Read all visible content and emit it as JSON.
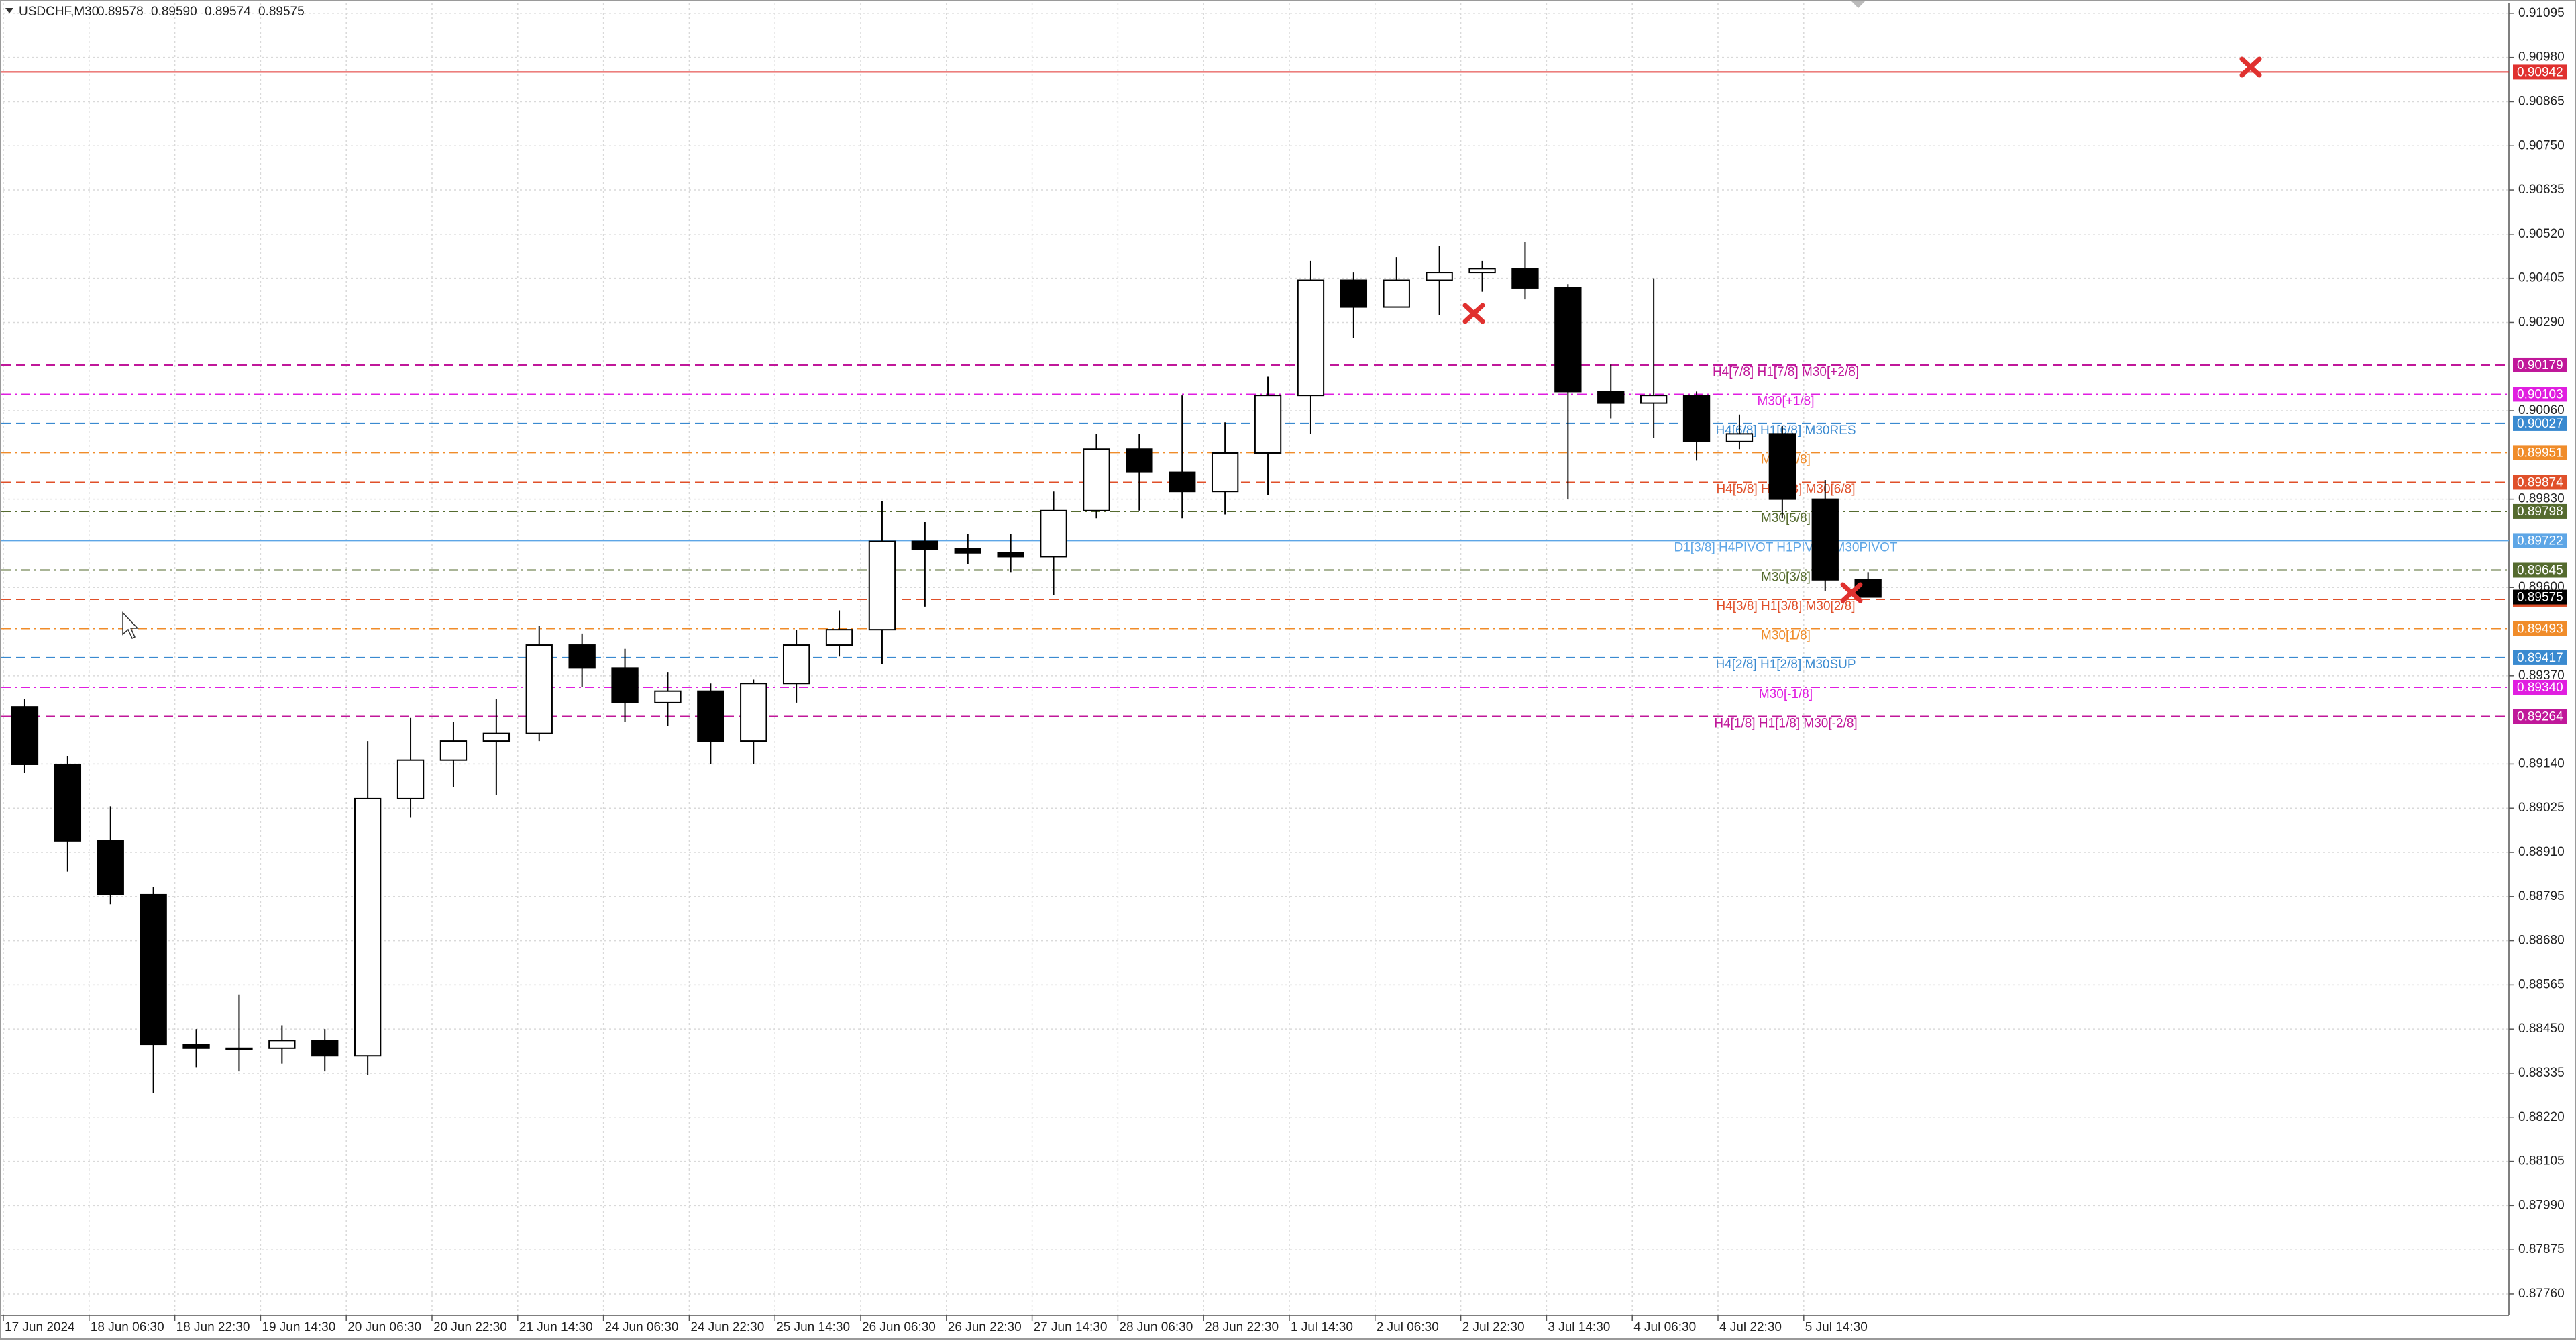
{
  "chart_data": {
    "type": "candlestick",
    "title": "USDCHF,M30",
    "quote": [
      "0.89578",
      "0.89590",
      "0.89574",
      "0.89575"
    ],
    "categories": [
      "17 Jun 2024",
      null,
      "18 Jun 06:30",
      null,
      "18 Jun 22:30",
      null,
      "19 Jun 14:30",
      null,
      "20 Jun 06:30",
      null,
      "20 Jun 22:30",
      null,
      "21 Jun 14:30",
      null,
      "24 Jun 06:30",
      null,
      "24 Jun 22:30",
      null,
      "25 Jun 14:30",
      null,
      "26 Jun 06:30",
      null,
      "26 Jun 22:30",
      null,
      "27 Jun 14:30",
      null,
      "28 Jun 06:30",
      null,
      "28 Jun 22:30",
      null,
      "1 Jul 14:30",
      null,
      "2 Jul 06:30",
      null,
      "2 Jul 22:30",
      null,
      "3 Jul 14:30",
      null,
      "4 Jul 06:30",
      null,
      "4 Jul 22:30",
      null,
      "5 Jul 14:30",
      null
    ],
    "open": [
      0.89289,
      0.89139,
      0.8894,
      0.888,
      0.8841,
      0.884,
      0.884,
      0.8842,
      0.8838,
      0.8905,
      0.8915,
      0.892,
      0.8922,
      0.8945,
      0.8939,
      0.893,
      0.8933,
      0.892,
      0.8935,
      0.8945,
      0.8949,
      0.8972,
      0.897,
      0.8969,
      0.8968,
      0.898,
      0.8996,
      0.899,
      0.8985,
      0.8995,
      0.901,
      0.904,
      0.9033,
      0.904,
      0.9042,
      0.9043,
      0.9038,
      0.9011,
      0.9008,
      0.901,
      0.8998,
      0.9,
      0.8983,
      0.8962
    ],
    "high": [
      0.8931,
      0.8916,
      0.8903,
      0.8882,
      0.8845,
      0.8854,
      0.8846,
      0.8845,
      0.892,
      0.8926,
      0.8925,
      0.8931,
      0.895,
      0.8948,
      0.8944,
      0.8938,
      0.8935,
      0.8936,
      0.8949,
      0.8954,
      0.89825,
      0.8977,
      0.8974,
      0.8974,
      0.8985,
      0.9,
      0.9,
      0.901,
      0.9003,
      0.9015,
      0.9045,
      0.9042,
      0.9046,
      0.9049,
      0.9045,
      0.905,
      0.9039,
      0.9018,
      0.90405,
      0.9011,
      0.9005,
      0.9002,
      0.8988,
      0.8964
    ],
    "low": [
      0.89117,
      0.8886,
      0.88775,
      0.88283,
      0.8835,
      0.8834,
      0.8836,
      0.8834,
      0.8833,
      0.89,
      0.8908,
      0.8906,
      0.892,
      0.8934,
      0.8925,
      0.8924,
      0.8914,
      0.8914,
      0.893,
      0.8942,
      0.894,
      0.8955,
      0.8966,
      0.8964,
      0.8958,
      0.8978,
      0.898,
      0.8978,
      0.8979,
      0.8984,
      0.9,
      0.9025,
      0.9033,
      0.9031,
      0.9037,
      0.9035,
      0.8983,
      0.9004,
      0.8999,
      0.8993,
      0.8996,
      0.8978,
      0.8959,
      0.89575
    ],
    "close": [
      0.89139,
      0.8894,
      0.888,
      0.8841,
      0.884,
      0.884,
      0.8842,
      0.8838,
      0.8905,
      0.8915,
      0.892,
      0.8922,
      0.8945,
      0.8939,
      0.893,
      0.8933,
      0.892,
      0.8935,
      0.8945,
      0.8949,
      0.8972,
      0.897,
      0.8969,
      0.8968,
      0.898,
      0.8996,
      0.899,
      0.8985,
      0.8995,
      0.901,
      0.904,
      0.9033,
      0.904,
      0.9042,
      0.9043,
      0.9038,
      0.9011,
      0.9008,
      0.901,
      0.8998,
      0.9,
      0.8983,
      0.8962,
      0.89575
    ],
    "ylim": [
      0.87704,
      0.91121
    ],
    "yticks": [
      0.91095,
      {
        "value": 0.9098,
        "label": "0.90980"
      },
      0.90865,
      {
        "value": 0.9075,
        "label": "0.90750"
      },
      0.90635,
      {
        "value": 0.9052,
        "label": "0.90520"
      },
      0.90405,
      {
        "value": 0.9029,
        "label": "0.90290"
      },
      {
        "value": 0.9006,
        "label": "0.90060"
      },
      {
        "value": 0.8983,
        "label": "0.89830"
      },
      {
        "value": 0.896,
        "label": "0.89600"
      },
      {
        "value": 0.8937,
        "label": "0.89370"
      },
      {
        "value": 0.8914,
        "label": "0.89140"
      },
      0.89025,
      {
        "value": 0.8891,
        "label": "0.88910"
      },
      0.88795,
      {
        "value": 0.8868,
        "label": "0.88680"
      },
      0.88565,
      {
        "value": 0.8845,
        "label": "0.88450"
      },
      0.88335,
      {
        "value": 0.8822,
        "label": "0.88220"
      },
      0.88105,
      {
        "value": 0.8799,
        "label": "0.87990"
      },
      0.87875,
      {
        "value": 0.8776,
        "label": "0.87760"
      }
    ],
    "grid": true,
    "last_price": 0.89575,
    "levels": [
      {
        "value": 0.90942,
        "color": "#e0312f",
        "style": "solid"
      },
      {
        "value": 0.90179,
        "name": "H4[7/8] H1[7/8] M30[+2/8]",
        "color": "#c0189a",
        "style": "dash"
      },
      {
        "value": 0.90103,
        "name": "M30[+1/8]",
        "color": "#e01ee0",
        "style": "dashdot"
      },
      {
        "value": 0.90027,
        "name": "H4[6/8] H1[6/8] M30RES",
        "color": "#3a8ad0",
        "style": "dash"
      },
      {
        "value": 0.89951,
        "name": "M30[7/8]",
        "color": "#f08c2a",
        "style": "dashdot"
      },
      {
        "value": 0.89874,
        "name": "H4[5/8] H1[5/8] M30[6/8]",
        "color": "#e0502a",
        "style": "dash"
      },
      {
        "value": 0.89798,
        "name": "M30[5/8]",
        "color": "#556b2f",
        "style": "dashdot"
      },
      {
        "value": 0.89722,
        "name": "D1[3/8] H4PIVOT H1PIVOT M30PIVOT",
        "color": "#5ea6e6",
        "style": "solid"
      },
      {
        "value": 0.89645,
        "name": "M30[3/8]",
        "color": "#556b2f",
        "style": "dashdot"
      },
      {
        "value": 0.89569,
        "name": "H4[3/8] H1[3/8] M30[2/8]",
        "color": "#e0502a",
        "style": "dash"
      },
      {
        "value": 0.89493,
        "name": "M30[1/8]",
        "color": "#f08c2a",
        "style": "dashdot"
      },
      {
        "value": 0.89417,
        "name": "H4[2/8] H1[2/8] M30SUP",
        "color": "#3a8ad0",
        "style": "dash"
      },
      {
        "value": 0.8934,
        "value_label": "0.89340",
        "name": "M30[-1/8]",
        "color": "#e01ee0",
        "style": "dashdot"
      },
      {
        "value": 0.89264,
        "name": "H4[1/8] H1[1/8] M30[-2/8]",
        "color": "#c0189a",
        "style": "dash"
      }
    ]
  }
}
